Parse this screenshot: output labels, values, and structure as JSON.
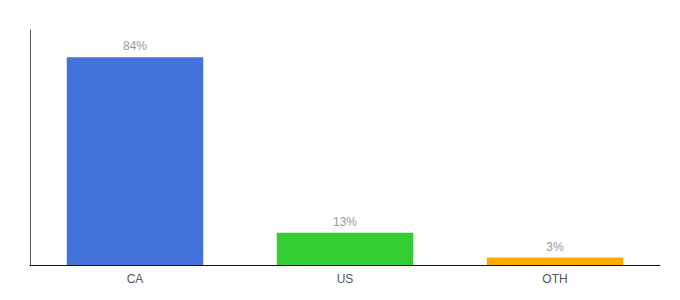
{
  "chart_data": {
    "type": "bar",
    "categories": [
      "CA",
      "US",
      "OTH"
    ],
    "values": [
      84,
      13,
      3
    ],
    "value_labels": [
      "84%",
      "13%",
      "3%"
    ],
    "colors": [
      "#4472db",
      "#33cc33",
      "#ffaa00"
    ],
    "ylim": [
      0,
      95
    ],
    "yticks": [],
    "tick_labels": "x",
    "data_labels": true,
    "grid": false
  }
}
